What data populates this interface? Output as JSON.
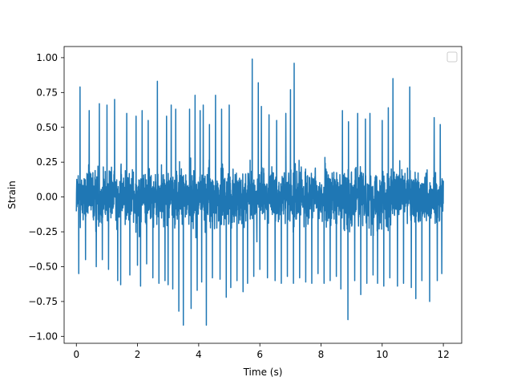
{
  "chart_data": {
    "type": "line",
    "title": "",
    "xlabel": "Time (s)",
    "ylabel": "Strain",
    "xlim": [
      -0.4,
      12.6
    ],
    "ylim": [
      -1.05,
      1.08
    ],
    "x_ticks": [
      0,
      2,
      4,
      6,
      8,
      10,
      12
    ],
    "x_tick_labels": [
      "0",
      "2",
      "4",
      "6",
      "8",
      "10",
      "12"
    ],
    "y_ticks": [
      -1.0,
      -0.75,
      -0.5,
      -0.25,
      0.0,
      0.25,
      0.5,
      0.75,
      1.0
    ],
    "y_tick_labels": [
      "−1.00",
      "−0.75",
      "−0.50",
      "−0.25",
      "0.00",
      "0.25",
      "0.50",
      "0.75",
      "1.00"
    ],
    "grid": false,
    "legend": {
      "placement": "top-right",
      "entries": []
    },
    "series": [
      {
        "color": "#1f77b4",
        "x_range": [
          0,
          12
        ],
        "typical_envelope": [
          -0.45,
          0.45
        ],
        "peaks": [
          {
            "x": 0.12,
            "y": 0.79
          },
          {
            "x": 0.42,
            "y": 0.62
          },
          {
            "x": 0.75,
            "y": 0.67
          },
          {
            "x": 1.0,
            "y": 0.66
          },
          {
            "x": 1.05,
            "y": 0.73
          },
          {
            "x": 1.25,
            "y": 0.7
          },
          {
            "x": 1.45,
            "y": 0.72
          },
          {
            "x": 1.65,
            "y": 0.6
          },
          {
            "x": 1.95,
            "y": 0.58
          },
          {
            "x": 2.15,
            "y": 0.62
          },
          {
            "x": 2.35,
            "y": 0.55
          },
          {
            "x": 2.65,
            "y": 0.83
          },
          {
            "x": 2.95,
            "y": 0.58
          },
          {
            "x": 3.1,
            "y": 0.66
          },
          {
            "x": 3.25,
            "y": 0.63
          },
          {
            "x": 3.5,
            "y": 0.96
          },
          {
            "x": 3.7,
            "y": 0.63
          },
          {
            "x": 3.88,
            "y": 0.73
          },
          {
            "x": 4.05,
            "y": 0.62
          },
          {
            "x": 4.15,
            "y": 0.66
          },
          {
            "x": 4.35,
            "y": 0.52
          },
          {
            "x": 4.55,
            "y": 0.73
          },
          {
            "x": 4.75,
            "y": 0.63
          },
          {
            "x": 5.0,
            "y": 0.66
          },
          {
            "x": 5.25,
            "y": 0.62
          },
          {
            "x": 5.45,
            "y": 0.58
          },
          {
            "x": 5.75,
            "y": 0.99
          },
          {
            "x": 5.95,
            "y": 0.82
          },
          {
            "x": 6.05,
            "y": 0.65
          },
          {
            "x": 6.3,
            "y": 0.59
          },
          {
            "x": 6.55,
            "y": 0.55
          },
          {
            "x": 6.7,
            "y": 0.56
          },
          {
            "x": 6.85,
            "y": 0.6
          },
          {
            "x": 7.0,
            "y": 0.77
          },
          {
            "x": 7.12,
            "y": 0.96
          },
          {
            "x": 7.3,
            "y": 0.6
          },
          {
            "x": 7.5,
            "y": 0.66
          },
          {
            "x": 7.7,
            "y": 0.62
          },
          {
            "x": 7.9,
            "y": 0.67
          },
          {
            "x": 8.1,
            "y": 0.6
          },
          {
            "x": 8.3,
            "y": 0.72
          },
          {
            "x": 8.5,
            "y": 0.55
          },
          {
            "x": 8.7,
            "y": 0.62
          },
          {
            "x": 8.9,
            "y": 0.54
          },
          {
            "x": 9.2,
            "y": 0.6
          },
          {
            "x": 9.45,
            "y": 0.56
          },
          {
            "x": 9.6,
            "y": 0.6
          },
          {
            "x": 9.85,
            "y": 0.73
          },
          {
            "x": 10.0,
            "y": 0.55
          },
          {
            "x": 10.2,
            "y": 0.64
          },
          {
            "x": 10.35,
            "y": 0.85
          },
          {
            "x": 10.5,
            "y": 1.0
          },
          {
            "x": 10.7,
            "y": 0.6
          },
          {
            "x": 10.9,
            "y": 0.79
          },
          {
            "x": 11.1,
            "y": 0.55
          },
          {
            "x": 11.3,
            "y": 0.66
          },
          {
            "x": 11.55,
            "y": 0.77
          },
          {
            "x": 11.7,
            "y": 0.57
          },
          {
            "x": 11.9,
            "y": 0.52
          }
        ],
        "troughs": [
          {
            "x": 0.08,
            "y": -0.55
          },
          {
            "x": 0.3,
            "y": -0.45
          },
          {
            "x": 0.65,
            "y": -0.5
          },
          {
            "x": 0.85,
            "y": -0.45
          },
          {
            "x": 1.05,
            "y": -0.52
          },
          {
            "x": 1.35,
            "y": -0.6
          },
          {
            "x": 1.45,
            "y": -0.63
          },
          {
            "x": 1.75,
            "y": -0.56
          },
          {
            "x": 2.0,
            "y": -0.49
          },
          {
            "x": 2.1,
            "y": -0.64
          },
          {
            "x": 2.3,
            "y": -0.48
          },
          {
            "x": 2.5,
            "y": -0.58
          },
          {
            "x": 2.7,
            "y": -0.62
          },
          {
            "x": 2.9,
            "y": -0.6
          },
          {
            "x": 3.0,
            "y": -0.63
          },
          {
            "x": 3.15,
            "y": -0.66
          },
          {
            "x": 3.35,
            "y": -0.82
          },
          {
            "x": 3.5,
            "y": -0.92
          },
          {
            "x": 3.75,
            "y": -0.8
          },
          {
            "x": 3.95,
            "y": -0.67
          },
          {
            "x": 4.1,
            "y": -0.61
          },
          {
            "x": 4.25,
            "y": -0.92
          },
          {
            "x": 4.45,
            "y": -0.58
          },
          {
            "x": 4.7,
            "y": -0.59
          },
          {
            "x": 4.9,
            "y": -0.72
          },
          {
            "x": 5.05,
            "y": -0.65
          },
          {
            "x": 5.25,
            "y": -0.6
          },
          {
            "x": 5.45,
            "y": -0.68
          },
          {
            "x": 5.6,
            "y": -0.62
          },
          {
            "x": 5.8,
            "y": -0.57
          },
          {
            "x": 6.0,
            "y": -0.52
          },
          {
            "x": 6.25,
            "y": -0.58
          },
          {
            "x": 6.5,
            "y": -0.6
          },
          {
            "x": 6.7,
            "y": -0.62
          },
          {
            "x": 6.9,
            "y": -0.57
          },
          {
            "x": 7.1,
            "y": -0.62
          },
          {
            "x": 7.3,
            "y": -0.58
          },
          {
            "x": 7.5,
            "y": -0.61
          },
          {
            "x": 7.7,
            "y": -0.62
          },
          {
            "x": 7.9,
            "y": -0.55
          },
          {
            "x": 8.1,
            "y": -0.62
          },
          {
            "x": 8.3,
            "y": -0.6
          },
          {
            "x": 8.5,
            "y": -0.57
          },
          {
            "x": 8.65,
            "y": -0.66
          },
          {
            "x": 8.88,
            "y": -0.88
          },
          {
            "x": 9.1,
            "y": -0.6
          },
          {
            "x": 9.3,
            "y": -0.7
          },
          {
            "x": 9.5,
            "y": -0.62
          },
          {
            "x": 9.7,
            "y": -0.56
          },
          {
            "x": 9.85,
            "y": -0.62
          },
          {
            "x": 10.05,
            "y": -0.64
          },
          {
            "x": 10.25,
            "y": -0.58
          },
          {
            "x": 10.5,
            "y": -0.64
          },
          {
            "x": 10.7,
            "y": -0.62
          },
          {
            "x": 10.95,
            "y": -0.65
          },
          {
            "x": 11.1,
            "y": -0.73
          },
          {
            "x": 11.3,
            "y": -0.6
          },
          {
            "x": 11.55,
            "y": -0.75
          },
          {
            "x": 11.8,
            "y": -0.6
          },
          {
            "x": 11.95,
            "y": -0.55
          }
        ]
      }
    ]
  }
}
